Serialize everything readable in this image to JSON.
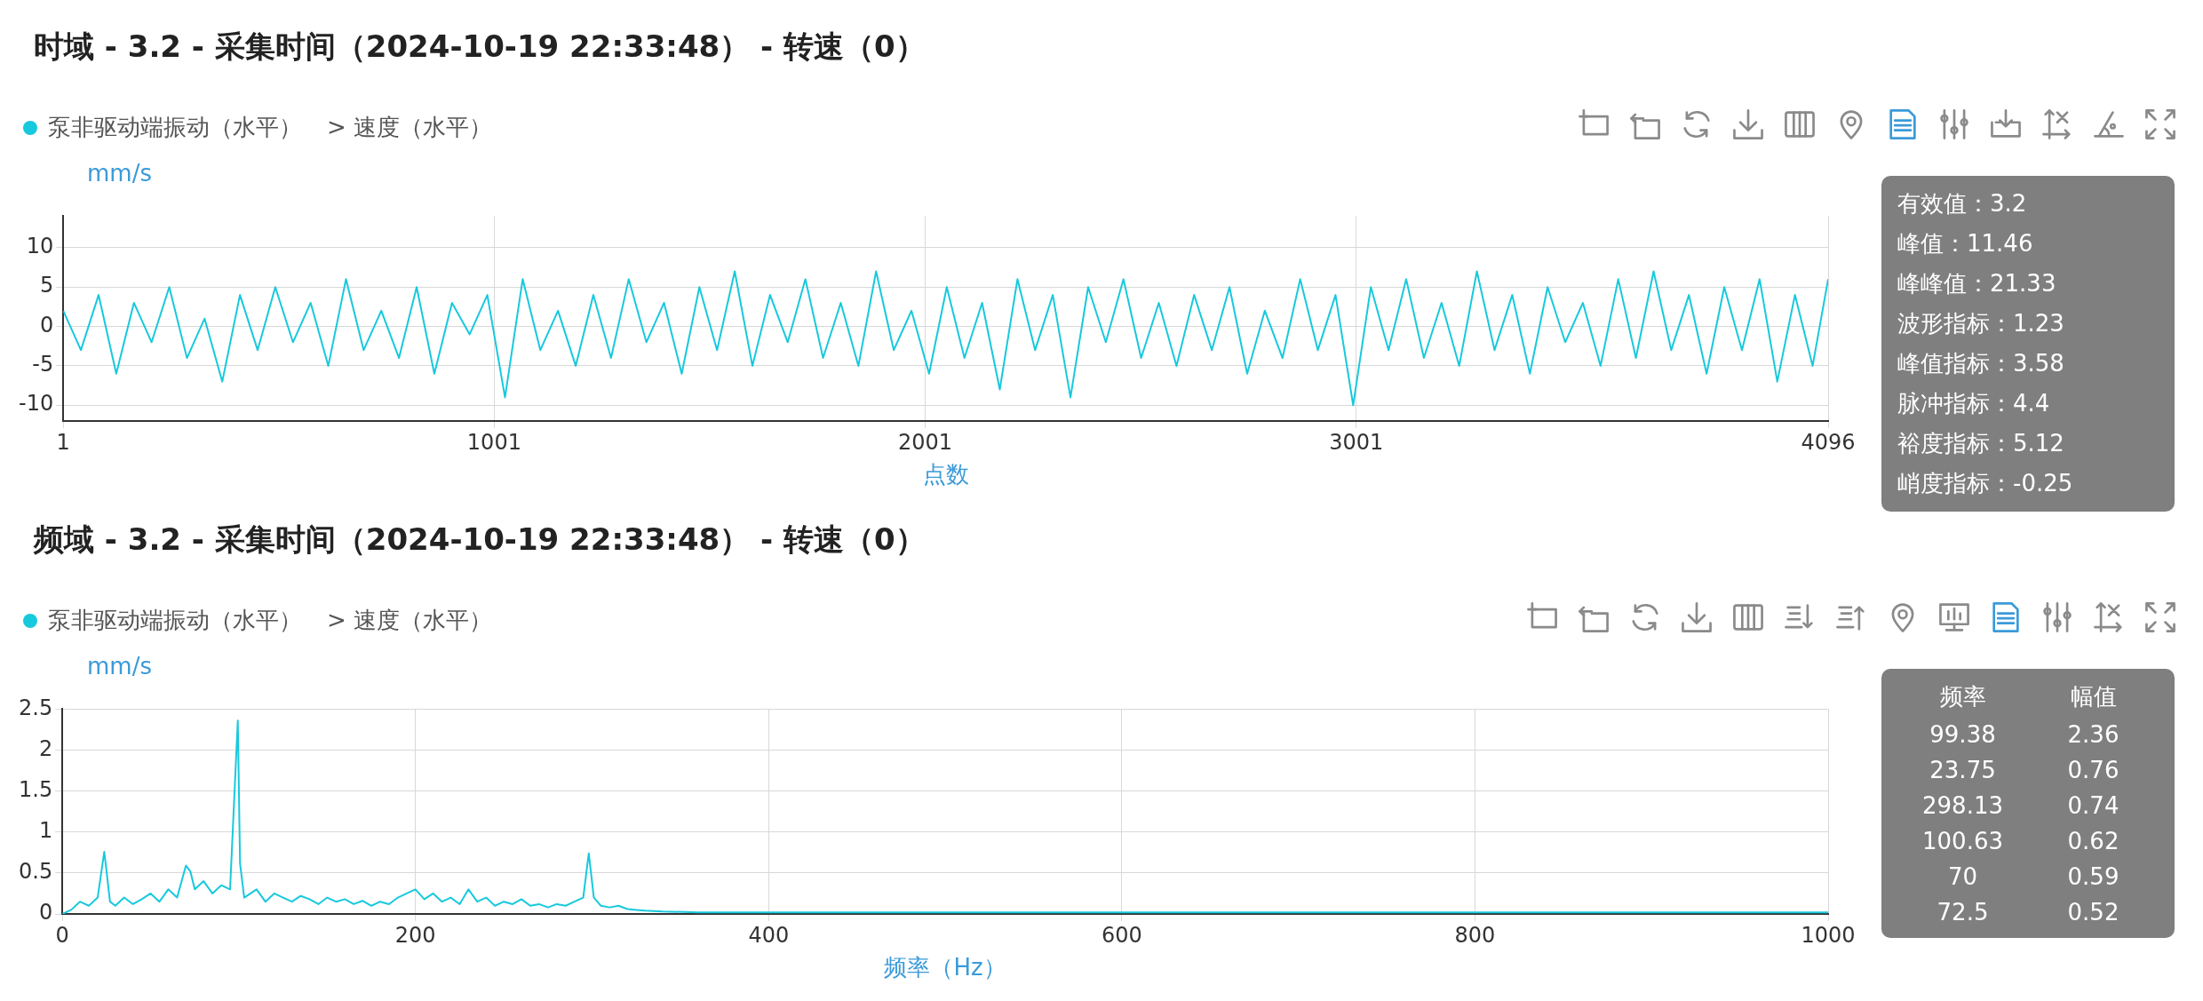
{
  "chart_data": [
    {
      "type": "line",
      "title": "时域 - 3.2 - 采集时间（2024-10-19 22:33:48） - 转速（0）",
      "subtitle": "> 速度（水平）",
      "xlabel": "点数",
      "ylabel": "mm/s",
      "legend": "top left",
      "marker": "none",
      "line_style": "solid",
      "grid": true,
      "xlim": [
        1,
        4096
      ],
      "xticks": [
        1,
        1001,
        2001,
        3001,
        4096
      ],
      "ylim": [
        -12,
        14
      ],
      "yticks": [
        -10,
        -5,
        0,
        5,
        10
      ],
      "series": [
        {
          "name": "泵非驱动端振动（水平）",
          "color": "#17c9dd",
          "x": [
            1,
            42,
            83,
            124,
            165,
            206,
            247,
            288,
            329,
            370,
            411,
            452,
            493,
            534,
            575,
            616,
            657,
            698,
            739,
            780,
            821,
            862,
            903,
            944,
            985,
            1026,
            1067,
            1108,
            1149,
            1190,
            1231,
            1272,
            1313,
            1354,
            1395,
            1436,
            1477,
            1518,
            1559,
            1600,
            1641,
            1682,
            1723,
            1764,
            1805,
            1846,
            1887,
            1928,
            1969,
            2010,
            2051,
            2092,
            2133,
            2174,
            2215,
            2256,
            2297,
            2338,
            2379,
            2420,
            2461,
            2502,
            2543,
            2584,
            2625,
            2666,
            2707,
            2748,
            2789,
            2830,
            2871,
            2912,
            2953,
            2994,
            3035,
            3076,
            3117,
            3158,
            3199,
            3240,
            3281,
            3322,
            3363,
            3404,
            3445,
            3486,
            3527,
            3568,
            3609,
            3650,
            3691,
            3732,
            3773,
            3814,
            3855,
            3896,
            3937,
            3978,
            4019,
            4060,
            4096
          ],
          "values": [
            2,
            -3,
            4,
            -6,
            3,
            -2,
            5,
            -4,
            1,
            -7,
            4,
            -3,
            5,
            -2,
            3,
            -5,
            6,
            -3,
            2,
            -4,
            5,
            -6,
            3,
            -1,
            4,
            -9,
            6,
            -3,
            2,
            -5,
            4,
            -4,
            6,
            -2,
            3,
            -6,
            5,
            -3,
            7,
            -5,
            4,
            -2,
            6,
            -4,
            3,
            -5,
            7,
            -3,
            2,
            -6,
            5,
            -4,
            3,
            -8,
            6,
            -3,
            4,
            -9,
            5,
            -2,
            6,
            -4,
            3,
            -5,
            4,
            -3,
            5,
            -6,
            2,
            -4,
            6,
            -3,
            4,
            -10,
            5,
            -3,
            6,
            -4,
            3,
            -5,
            7,
            -3,
            4,
            -6,
            5,
            -2,
            3,
            -5,
            6,
            -4,
            7,
            -3,
            4,
            -6,
            5,
            -3,
            6,
            -7,
            4,
            -5,
            6
          ]
        }
      ],
      "annotations": [
        "有效值：3.2",
        "峰值：11.46",
        "峰峰值：21.33",
        "波形指标：1.23",
        "峰值指标：3.58",
        "脉冲指标：4.4",
        "裕度指标：5.12",
        "峭度指标：-0.25"
      ]
    },
    {
      "type": "line",
      "title": "频域 - 3.2 - 采集时间（2024-10-19 22:33:48） - 转速（0）",
      "subtitle": "> 速度（水平）",
      "xlabel": "频率（Hz）",
      "ylabel": "mm/s",
      "legend": "top left",
      "marker": "none",
      "line_style": "solid",
      "grid": true,
      "xlim": [
        0,
        1000
      ],
      "xticks": [
        0,
        200,
        400,
        600,
        800,
        1000
      ],
      "ylim": [
        0,
        2.5
      ],
      "yticks": [
        0,
        0.5,
        1,
        1.5,
        2,
        2.5
      ],
      "series": [
        {
          "name": "泵非驱动端振动（水平）",
          "color": "#17c9dd",
          "x": [
            0,
            5,
            10,
            15,
            20,
            23.75,
            27,
            30,
            35,
            40,
            45,
            50,
            55,
            60,
            65,
            70,
            72.5,
            75,
            80,
            85,
            90,
            95,
            99.38,
            100.63,
            103,
            110,
            115,
            120,
            125,
            130,
            135,
            140,
            145,
            150,
            155,
            160,
            165,
            170,
            175,
            180,
            185,
            190,
            195,
            200,
            205,
            210,
            215,
            220,
            225,
            230,
            235,
            240,
            245,
            250,
            255,
            260,
            265,
            270,
            275,
            280,
            285,
            290,
            295,
            298.13,
            301,
            305,
            310,
            315,
            320,
            325,
            330,
            340,
            360,
            400,
            450,
            500,
            600,
            700,
            800,
            900,
            1000
          ],
          "values": [
            0,
            0.05,
            0.15,
            0.1,
            0.2,
            0.76,
            0.15,
            0.1,
            0.2,
            0.12,
            0.18,
            0.25,
            0.15,
            0.3,
            0.2,
            0.59,
            0.52,
            0.3,
            0.4,
            0.25,
            0.35,
            0.3,
            2.36,
            0.62,
            0.2,
            0.3,
            0.15,
            0.25,
            0.2,
            0.15,
            0.22,
            0.18,
            0.12,
            0.2,
            0.15,
            0.18,
            0.12,
            0.16,
            0.1,
            0.15,
            0.12,
            0.2,
            0.25,
            0.3,
            0.18,
            0.25,
            0.15,
            0.2,
            0.12,
            0.3,
            0.15,
            0.2,
            0.1,
            0.15,
            0.12,
            0.18,
            0.1,
            0.12,
            0.08,
            0.12,
            0.1,
            0.15,
            0.2,
            0.74,
            0.2,
            0.1,
            0.08,
            0.1,
            0.06,
            0.05,
            0.04,
            0.03,
            0.02,
            0.02,
            0.02,
            0.02,
            0.02,
            0.02,
            0.02,
            0.02,
            0.02
          ]
        }
      ],
      "annotations": [
        "频率",
        "幅值",
        "99.38",
        "2.36",
        "23.75",
        "0.76",
        "298.13",
        "0.74",
        "100.63",
        "0.62",
        "70",
        "0.59",
        "72.5",
        "0.52"
      ]
    }
  ]
}
